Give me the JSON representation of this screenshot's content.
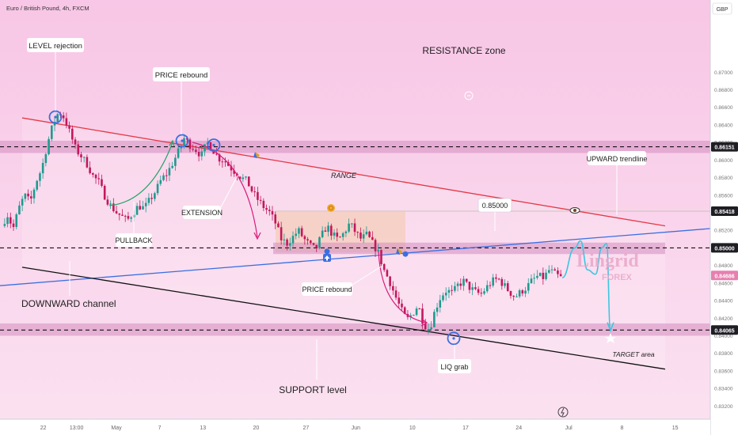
{
  "header": {
    "symbol_title": "Euro / British Pound, 4h, FXCM",
    "currency": "GBP"
  },
  "watermark": {
    "line1": "Lingrid",
    "line2": "FOREX"
  },
  "colors": {
    "background_top": "#f8c6e6",
    "background_bottom": "#fbe2f1",
    "candle_up": "#1f9a8f",
    "candle_down": "#c2185b",
    "resistance_line": "#e53945",
    "trendline": "#3b6fe0",
    "channel_bottom": "#111111",
    "zone": "#d48cc0",
    "projection": "#3cc6e0",
    "arrow_curve": "#d81b7a",
    "arrow_green": "#2aa36a"
  },
  "chart_data": {
    "type": "candlestick",
    "instrument": "EUR/GBP",
    "timeframe": "4h",
    "y_axis": {
      "range": [
        0.8305,
        0.8775
      ],
      "ticks": [
        0.87,
        0.868,
        0.866,
        0.864,
        0.862,
        0.86,
        0.858,
        0.856,
        0.854,
        0.852,
        0.85,
        0.848,
        0.846,
        0.844,
        0.842,
        0.84,
        0.838,
        0.836,
        0.834,
        0.832
      ],
      "tick_labels": [
        "0.87000",
        "0.86800",
        "0.86600",
        "0.86400",
        "0.86200",
        "0.86000",
        "0.85800",
        "0.85600",
        "0.85400",
        "0.85200",
        "0.85000",
        "0.84800",
        "0.84600",
        "0.84400",
        "0.84200",
        "0.84000",
        "0.83800",
        "0.83600",
        "0.83400",
        "0.83200"
      ]
    },
    "x_axis": {
      "ticks": [
        "22",
        "13:00",
        "May",
        "7",
        "13",
        "20",
        "27",
        "Jun",
        "10",
        "17",
        "24",
        "Jul",
        "8",
        "15"
      ],
      "tick_positions_frac": [
        0.065,
        0.115,
        0.175,
        0.24,
        0.305,
        0.385,
        0.46,
        0.535,
        0.62,
        0.7,
        0.78,
        0.855,
        0.935,
        1.015
      ]
    },
    "price_markers": [
      {
        "value": 0.86151,
        "label": "0.86151",
        "style": "dark"
      },
      {
        "value": 0.85418,
        "label": "0.85418",
        "style": "dark"
      },
      {
        "value": 0.85,
        "label": "0.85000",
        "style": "dark"
      },
      {
        "value": 0.84686,
        "label": "0.84686",
        "style": "pink"
      },
      {
        "value": 0.84065,
        "label": "0.84065",
        "style": "dark"
      }
    ],
    "zones": [
      {
        "name": "resistance",
        "from": 0.8608,
        "to": 0.8622
      },
      {
        "name": "range",
        "from": 0.8495,
        "to": 0.8541
      },
      {
        "name": "mid-zone",
        "from": 0.8493,
        "to": 0.8506
      },
      {
        "name": "support",
        "from": 0.84,
        "to": 0.8414
      }
    ],
    "horizontal_levels": [
      0.86151,
      0.85,
      0.84065
    ],
    "close_points": [
      0.8525,
      0.8538,
      0.8522,
      0.8545,
      0.856,
      0.8552,
      0.8575,
      0.859,
      0.8618,
      0.8641,
      0.8655,
      0.8648,
      0.863,
      0.8612,
      0.8604,
      0.8595,
      0.8582,
      0.8575,
      0.856,
      0.8549,
      0.8541,
      0.8536,
      0.8531,
      0.854,
      0.8548,
      0.8545,
      0.8555,
      0.8565,
      0.8578,
      0.8585,
      0.8597,
      0.861,
      0.8625,
      0.8617,
      0.8612,
      0.8605,
      0.862,
      0.8612,
      0.8602,
      0.86,
      0.8592,
      0.8586,
      0.858,
      0.8576,
      0.8563,
      0.8554,
      0.8546,
      0.854,
      0.8528,
      0.851,
      0.8505,
      0.8512,
      0.852,
      0.851,
      0.8503,
      0.8498,
      0.8513,
      0.8525,
      0.8515,
      0.8509,
      0.8517,
      0.8528,
      0.8518,
      0.851,
      0.8515,
      0.8505,
      0.8495,
      0.8475,
      0.8462,
      0.8445,
      0.843,
      0.8418,
      0.8425,
      0.8435,
      0.8413,
      0.8407,
      0.843,
      0.8445,
      0.8452,
      0.8448,
      0.8458,
      0.8462,
      0.8455,
      0.845,
      0.8447,
      0.8455,
      0.8462,
      0.8465,
      0.8458,
      0.845,
      0.8444,
      0.845,
      0.8455,
      0.8463,
      0.8468,
      0.8466,
      0.8475,
      0.847,
      0.8466
    ],
    "projection": [
      0.8466,
      0.85,
      0.8508,
      0.8475,
      0.847,
      0.85,
      0.8505,
      0.8406
    ],
    "annotations": [
      {
        "id": "level-rejection",
        "text": "LEVEL rejection"
      },
      {
        "id": "price-rebound-top",
        "text": "PRICE rebound"
      },
      {
        "id": "resistance-zone",
        "text": "RESISTANCE zone"
      },
      {
        "id": "upward-trendline",
        "text": "UPWARD trendline"
      },
      {
        "id": "range",
        "text": "RANGE"
      },
      {
        "id": "level-85",
        "text": "0.85000"
      },
      {
        "id": "extension",
        "text": "EXTENSION"
      },
      {
        "id": "pullback",
        "text": "PULLBACK"
      },
      {
        "id": "price-rebound-bottom",
        "text": "PRICE rebound"
      },
      {
        "id": "downward-channel",
        "text": "DOWNWARD channel"
      },
      {
        "id": "support-level",
        "text": "SUPPORT level"
      },
      {
        "id": "liq-grab",
        "text": "LIQ grab"
      },
      {
        "id": "target-area",
        "text": "TARGET area"
      }
    ]
  }
}
